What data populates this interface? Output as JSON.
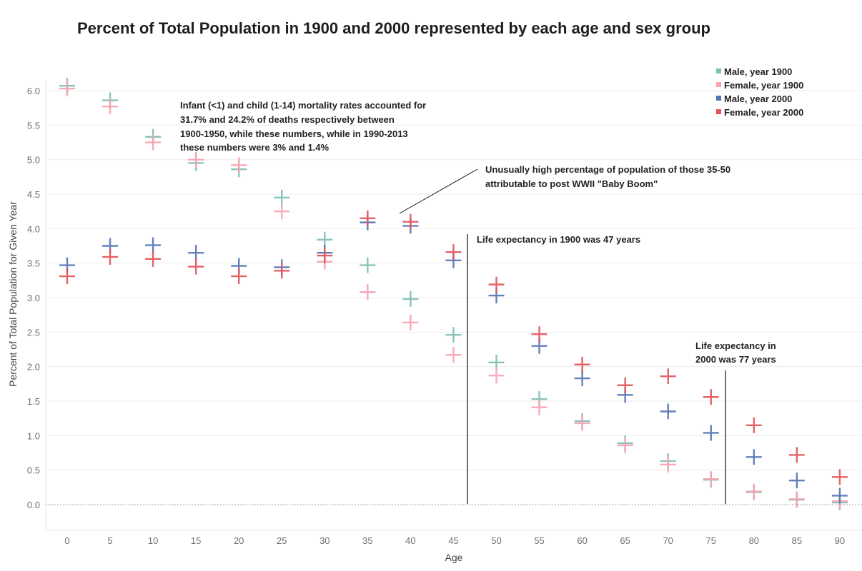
{
  "chart_data": {
    "type": "scatter",
    "marker": "cross",
    "title": "Percent of Total Population in 1900 and 2000 represented by each age and sex group",
    "xlabel": "Age",
    "ylabel": "Percent of Total Population for Given Year",
    "x": [
      0,
      5,
      10,
      15,
      20,
      25,
      30,
      35,
      40,
      45,
      50,
      55,
      60,
      65,
      70,
      75,
      80,
      85,
      90
    ],
    "x_tick_labels": [
      "0",
      "5",
      "10",
      "15",
      "20",
      "25",
      "30",
      "35",
      "40",
      "45",
      "50",
      "55",
      "60",
      "65",
      "70",
      "75",
      "80",
      "85",
      "90"
    ],
    "ylim": [
      -0.38,
      6.3
    ],
    "y_ticks": [
      0.0,
      0.5,
      1.0,
      1.5,
      2.0,
      2.5,
      3.0,
      3.5,
      4.0,
      4.5,
      5.0,
      5.5,
      6.0
    ],
    "y_tick_labels": [
      "0.0",
      "0.5",
      "1.0",
      "1.5",
      "2.0",
      "2.5",
      "3.0",
      "3.5",
      "4.0",
      "4.5",
      "5.0",
      "5.5",
      "6.0"
    ],
    "grid": true,
    "series": [
      {
        "name": "Male, year 1900",
        "color": "#7ebfb4",
        "values": [
          6.07,
          5.86,
          5.33,
          4.95,
          4.86,
          4.45,
          3.84,
          3.47,
          2.98,
          2.46,
          2.06,
          1.53,
          1.21,
          0.89,
          0.63,
          0.36,
          0.18,
          0.07,
          0.03
        ]
      },
      {
        "name": "Female, year 1900",
        "color": "#f7a3b2",
        "values": [
          6.03,
          5.77,
          5.25,
          5.0,
          4.92,
          4.25,
          3.52,
          3.08,
          2.64,
          2.17,
          1.87,
          1.41,
          1.18,
          0.86,
          0.58,
          0.37,
          0.19,
          0.08,
          0.05
        ]
      },
      {
        "name": "Male, year 2000",
        "color": "#5577b5",
        "values": [
          3.47,
          3.75,
          3.76,
          3.65,
          3.46,
          3.44,
          3.65,
          4.09,
          4.04,
          3.54,
          3.03,
          2.3,
          1.83,
          1.59,
          1.35,
          1.04,
          0.69,
          0.35,
          0.13
        ]
      },
      {
        "name": "Female, year 2000",
        "color": "#e3555b",
        "values": [
          3.31,
          3.59,
          3.56,
          3.45,
          3.31,
          3.39,
          3.61,
          4.15,
          4.1,
          3.66,
          3.19,
          2.47,
          2.03,
          1.73,
          1.86,
          1.56,
          1.15,
          0.72,
          0.4
        ]
      }
    ],
    "legend_position": "top-right",
    "annotations": [
      {
        "id": "infant",
        "lines": [
          "Infant (<1) and child (1-14) mortality rates accounted for",
          "31.7% and 24.2% of deaths respectively between",
          "1900-1950, while these numbers, while in 1990-2013",
          "these numbers were 3% and 1.4%"
        ]
      },
      {
        "id": "boom",
        "lines": [
          "Unusually high percentage of population of those 35-50",
          "attributable to post WWII \"Baby Boom\""
        ]
      },
      {
        "id": "le1900",
        "lines": [
          "Life expectancy in 1900 was 47 years"
        ]
      },
      {
        "id": "le2000",
        "lines": [
          "Life expectancy in",
          "2000 was 77 years"
        ]
      }
    ]
  }
}
